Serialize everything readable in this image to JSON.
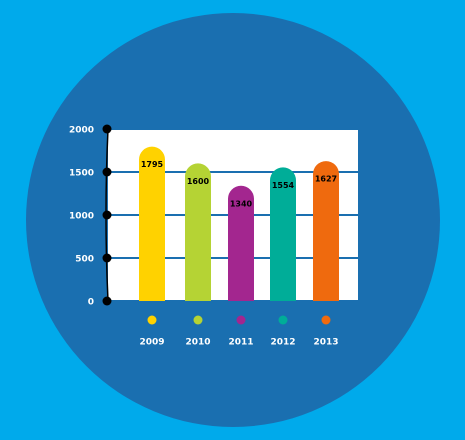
{
  "chart_data": {
    "type": "bar",
    "categories": [
      "2009",
      "2010",
      "2011",
      "2012",
      "2013"
    ],
    "series": [
      {
        "values": [
          1795,
          1600,
          1340,
          1554,
          1627
        ],
        "colors": [
          "#ffd200",
          "#b5d334",
          "#a3268f",
          "#00ad98",
          "#ef6a0e"
        ]
      }
    ],
    "ylim": [
      0,
      2000
    ],
    "yticks": [
      0,
      500,
      1000,
      1500,
      2000
    ],
    "grid": true
  }
}
